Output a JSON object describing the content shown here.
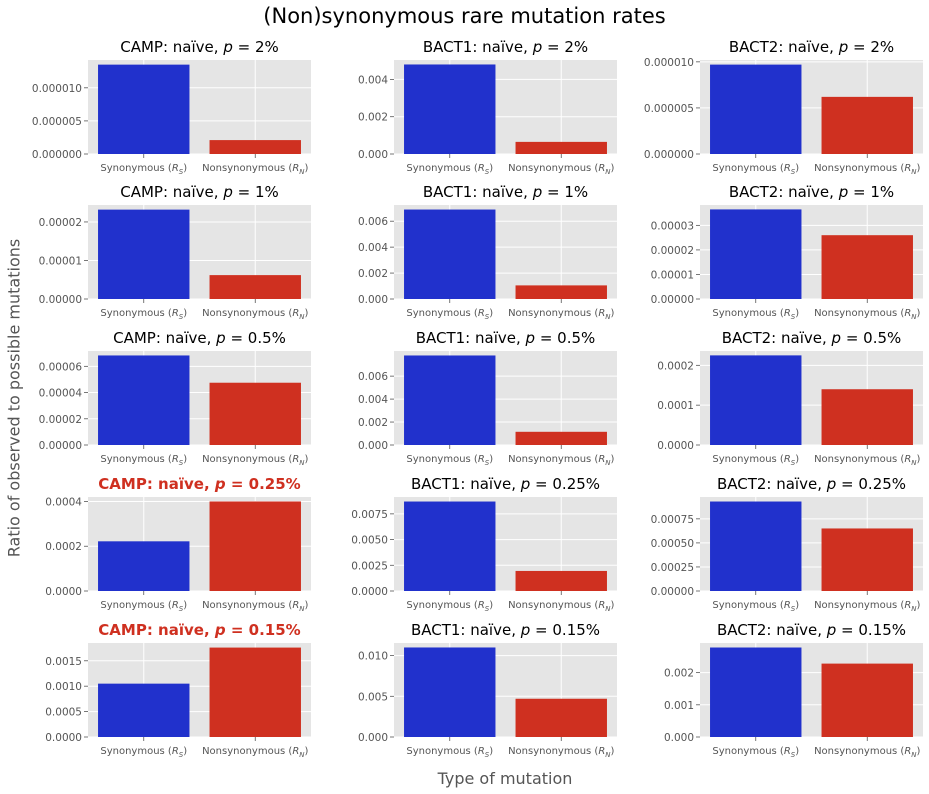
{
  "suptitle": "(Non)synonymous rare mutation rates",
  "ylabel": "Ratio of observed to possible mutations",
  "xlabel": "Type of mutation",
  "colors": {
    "synonymous": "#2131cc",
    "nonsynonymous": "#cf3020",
    "highlight_title": "#cf3020",
    "panel_bg": "#e5e5e5",
    "grid": "#ffffff",
    "tick_text": "#555555"
  },
  "chart_data": [
    {
      "type": "bar",
      "title_prefix": "CAMP: naïve, ",
      "title_p": "2%",
      "highlight": false,
      "categories": [
        "Synonymous (RS)",
        "Nonsynonymous (RN)"
      ],
      "values": [
        1.35e-05,
        2.1e-06
      ],
      "ylim": [
        0,
        1.42e-05
      ],
      "yticks": [
        "0.000000",
        "0.000005",
        "0.000010"
      ],
      "ytick_values": [
        0,
        5e-06,
        1e-05
      ]
    },
    {
      "type": "bar",
      "title_prefix": "BACT1: naïve, ",
      "title_p": "2%",
      "highlight": false,
      "categories": [
        "Synonymous (RS)",
        "Nonsynonymous (RN)"
      ],
      "values": [
        0.0048,
        0.00065
      ],
      "ylim": [
        0,
        0.00504
      ],
      "yticks": [
        "0.000",
        "0.002",
        "0.004"
      ],
      "ytick_values": [
        0,
        0.002,
        0.004
      ]
    },
    {
      "type": "bar",
      "title_prefix": "BACT2: naïve, ",
      "title_p": "2%",
      "highlight": false,
      "categories": [
        "Synonymous (RS)",
        "Nonsynonymous (RN)"
      ],
      "values": [
        9.7e-06,
        6.2e-06
      ],
      "ylim": [
        0,
        1.02e-05
      ],
      "yticks": [
        "0.000000",
        "0.000005",
        "0.000010"
      ],
      "ytick_values": [
        0,
        5e-06,
        1e-05
      ]
    },
    {
      "type": "bar",
      "title_prefix": "CAMP: naïve, ",
      "title_p": "1%",
      "highlight": false,
      "categories": [
        "Synonymous (RS)",
        "Nonsynonymous (RN)"
      ],
      "values": [
        2.32e-05,
        6.2e-06
      ],
      "ylim": [
        0,
        2.44e-05
      ],
      "yticks": [
        "0.00000",
        "0.00001",
        "0.00002"
      ],
      "ytick_values": [
        0,
        1e-05,
        2e-05
      ]
    },
    {
      "type": "bar",
      "title_prefix": "BACT1: naïve, ",
      "title_p": "1%",
      "highlight": false,
      "categories": [
        "Synonymous (RS)",
        "Nonsynonymous (RN)"
      ],
      "values": [
        0.0069,
        0.00105
      ],
      "ylim": [
        0,
        0.00725
      ],
      "yticks": [
        "0.000",
        "0.002",
        "0.004",
        "0.006"
      ],
      "ytick_values": [
        0,
        0.002,
        0.004,
        0.006
      ]
    },
    {
      "type": "bar",
      "title_prefix": "BACT2: naïve, ",
      "title_p": "1%",
      "highlight": false,
      "categories": [
        "Synonymous (RS)",
        "Nonsynonymous (RN)"
      ],
      "values": [
        3.65e-05,
        2.6e-05
      ],
      "ylim": [
        0,
        3.83e-05
      ],
      "yticks": [
        "0.00000",
        "0.00001",
        "0.00002",
        "0.00003"
      ],
      "ytick_values": [
        0,
        1e-05,
        2e-05,
        3e-05
      ]
    },
    {
      "type": "bar",
      "title_prefix": "CAMP: naïve, ",
      "title_p": "0.5%",
      "highlight": false,
      "categories": [
        "Synonymous (RS)",
        "Nonsynonymous (RN)"
      ],
      "values": [
        6.83e-05,
        4.75e-05
      ],
      "ylim": [
        0,
        7.17e-05
      ],
      "yticks": [
        "0.00000",
        "0.00002",
        "0.00004",
        "0.00006"
      ],
      "ytick_values": [
        0,
        2e-05,
        4e-05,
        6e-05
      ]
    },
    {
      "type": "bar",
      "title_prefix": "BACT1: naïve, ",
      "title_p": "0.5%",
      "highlight": false,
      "categories": [
        "Synonymous (RS)",
        "Nonsynonymous (RN)"
      ],
      "values": [
        0.0078,
        0.00115
      ],
      "ylim": [
        0,
        0.00819
      ],
      "yticks": [
        "0.000",
        "0.002",
        "0.004",
        "0.006"
      ],
      "ytick_values": [
        0,
        0.002,
        0.004,
        0.006
      ]
    },
    {
      "type": "bar",
      "title_prefix": "BACT2: naïve, ",
      "title_p": "0.5%",
      "highlight": false,
      "categories": [
        "Synonymous (RS)",
        "Nonsynonymous (RN)"
      ],
      "values": [
        0.000225,
        0.00014
      ],
      "ylim": [
        0,
        0.000236
      ],
      "yticks": [
        "0.0000",
        "0.0001",
        "0.0002"
      ],
      "ytick_values": [
        0,
        0.0001,
        0.0002
      ]
    },
    {
      "type": "bar",
      "title_prefix": "CAMP: naïve, ",
      "title_p": "0.25%",
      "highlight": true,
      "categories": [
        "Synonymous (RS)",
        "Nonsynonymous (RN)"
      ],
      "values": [
        0.000222,
        0.0004
      ],
      "ylim": [
        0,
        0.00042
      ],
      "yticks": [
        "0.0000",
        "0.0002",
        "0.0004"
      ],
      "ytick_values": [
        0,
        0.0002,
        0.0004
      ]
    },
    {
      "type": "bar",
      "title_prefix": "BACT1: naïve, ",
      "title_p": "0.25%",
      "highlight": false,
      "categories": [
        "Synonymous (RS)",
        "Nonsynonymous (RN)"
      ],
      "values": [
        0.0087,
        0.00195
      ],
      "ylim": [
        0,
        0.00914
      ],
      "yticks": [
        "0.0000",
        "0.0025",
        "0.0050",
        "0.0075"
      ],
      "ytick_values": [
        0,
        0.0025,
        0.005,
        0.0075
      ]
    },
    {
      "type": "bar",
      "title_prefix": "BACT2: naïve, ",
      "title_p": "0.25%",
      "highlight": false,
      "categories": [
        "Synonymous (RS)",
        "Nonsynonymous (RN)"
      ],
      "values": [
        0.00093,
        0.00065
      ],
      "ylim": [
        0,
        0.000977
      ],
      "yticks": [
        "0.00000",
        "0.00025",
        "0.00050",
        "0.00075"
      ],
      "ytick_values": [
        0,
        0.00025,
        0.0005,
        0.00075
      ]
    },
    {
      "type": "bar",
      "title_prefix": "CAMP: naïve, ",
      "title_p": "0.15%",
      "highlight": true,
      "categories": [
        "Synonymous (RS)",
        "Nonsynonymous (RN)"
      ],
      "values": [
        0.00105,
        0.00176
      ],
      "ylim": [
        0,
        0.00185
      ],
      "yticks": [
        "0.0000",
        "0.0005",
        "0.0010",
        "0.0015"
      ],
      "ytick_values": [
        0,
        0.0005,
        0.001,
        0.0015
      ]
    },
    {
      "type": "bar",
      "title_prefix": "BACT1: naïve, ",
      "title_p": "0.15%",
      "highlight": false,
      "categories": [
        "Synonymous (RS)",
        "Nonsynonymous (RN)"
      ],
      "values": [
        0.011,
        0.0047
      ],
      "ylim": [
        0,
        0.01155
      ],
      "yticks": [
        "0.000",
        "0.005",
        "0.010"
      ],
      "ytick_values": [
        0,
        0.005,
        0.01
      ]
    },
    {
      "type": "bar",
      "title_prefix": "BACT2: naïve, ",
      "title_p": "0.15%",
      "highlight": false,
      "categories": [
        "Synonymous (RS)",
        "Nonsynonymous (RN)"
      ],
      "values": [
        0.00278,
        0.00228
      ],
      "ylim": [
        0,
        0.00292
      ],
      "yticks": [
        "0.000",
        "0.001",
        "0.002"
      ],
      "ytick_values": [
        0,
        0.001,
        0.002
      ]
    }
  ]
}
